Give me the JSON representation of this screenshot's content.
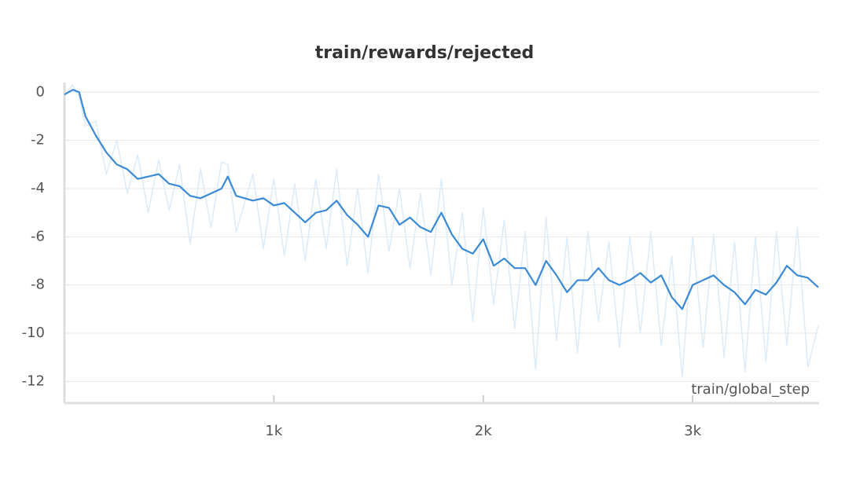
{
  "chart_data": {
    "type": "line",
    "title": "train/rewards/rejected",
    "x_label": "train/global_step",
    "x": [
      0,
      40,
      70,
      100,
      150,
      200,
      250,
      300,
      350,
      400,
      450,
      500,
      550,
      600,
      650,
      700,
      750,
      780,
      820,
      900,
      950,
      1000,
      1050,
      1100,
      1150,
      1200,
      1250,
      1300,
      1350,
      1400,
      1450,
      1500,
      1550,
      1600,
      1650,
      1700,
      1750,
      1800,
      1850,
      1900,
      1950,
      2000,
      2050,
      2100,
      2150,
      2200,
      2250,
      2300,
      2350,
      2400,
      2450,
      2500,
      2550,
      2600,
      2650,
      2700,
      2750,
      2800,
      2850,
      2900,
      2950,
      3000,
      3050,
      3100,
      3150,
      3200,
      3250,
      3300,
      3350,
      3400,
      3450,
      3500,
      3550,
      3600
    ],
    "series": [
      {
        "color": "#dcebf8",
        "values": [
          -0.1,
          0.3,
          -0.2,
          -1.4,
          -1.2,
          -3.4,
          -2.0,
          -4.2,
          -2.6,
          -5.0,
          -2.8,
          -4.9,
          -3.0,
          -6.3,
          -3.2,
          -5.6,
          -2.9,
          -3.0,
          -5.8,
          -3.4,
          -6.5,
          -3.6,
          -6.8,
          -3.8,
          -7.0,
          -3.6,
          -6.5,
          -3.2,
          -7.2,
          -4.0,
          -7.5,
          -3.4,
          -6.6,
          -4.0,
          -7.3,
          -4.2,
          -7.6,
          -3.6,
          -8.0,
          -5.0,
          -9.5,
          -4.8,
          -8.8,
          -5.3,
          -9.8,
          -5.8,
          -11.5,
          -5.2,
          -10.3,
          -6.0,
          -10.8,
          -5.8,
          -9.5,
          -6.2,
          -10.6,
          -6.0,
          -10.0,
          -5.8,
          -10.5,
          -6.8,
          -11.8,
          -6.0,
          -10.6,
          -5.9,
          -11.0,
          -6.2,
          -11.6,
          -6.0,
          -11.2,
          -5.8,
          -10.5,
          -5.6,
          -11.4,
          -9.7
        ]
      },
      {
        "color": "#3a8ad6",
        "values": [
          -0.1,
          0.1,
          0.0,
          -1.0,
          -1.8,
          -2.5,
          -3.0,
          -3.2,
          -3.6,
          -3.5,
          -3.4,
          -3.8,
          -3.9,
          -4.3,
          -4.4,
          -4.2,
          -4.0,
          -3.5,
          -4.3,
          -4.5,
          -4.4,
          -4.7,
          -4.6,
          -5.0,
          -5.4,
          -5.0,
          -4.9,
          -4.5,
          -5.1,
          -5.5,
          -6.0,
          -4.7,
          -4.8,
          -5.5,
          -5.2,
          -5.6,
          -5.8,
          -5.0,
          -5.9,
          -6.5,
          -6.7,
          -6.1,
          -7.2,
          -6.9,
          -7.3,
          -7.3,
          -8.0,
          -7.0,
          -7.6,
          -8.3,
          -7.8,
          -7.8,
          -7.3,
          -7.8,
          -8.0,
          -7.8,
          -7.5,
          -7.9,
          -7.6,
          -8.5,
          -9.0,
          -8.0,
          -7.8,
          -7.6,
          -8.0,
          -8.3,
          -8.8,
          -8.2,
          -8.4,
          -7.9,
          -7.2,
          -7.6,
          -7.7,
          -8.1
        ]
      }
    ],
    "xlim": [
      0,
      3604
    ],
    "xticks": [
      {
        "value": 1000,
        "label": "1k"
      },
      {
        "value": 2000,
        "label": "2k"
      },
      {
        "value": 3000,
        "label": "3k"
      }
    ],
    "ylim": [
      -12.9,
      0.4
    ],
    "yticks": [
      0,
      -2,
      -4,
      -6,
      -8,
      -10,
      -12
    ],
    "grid": true
  }
}
